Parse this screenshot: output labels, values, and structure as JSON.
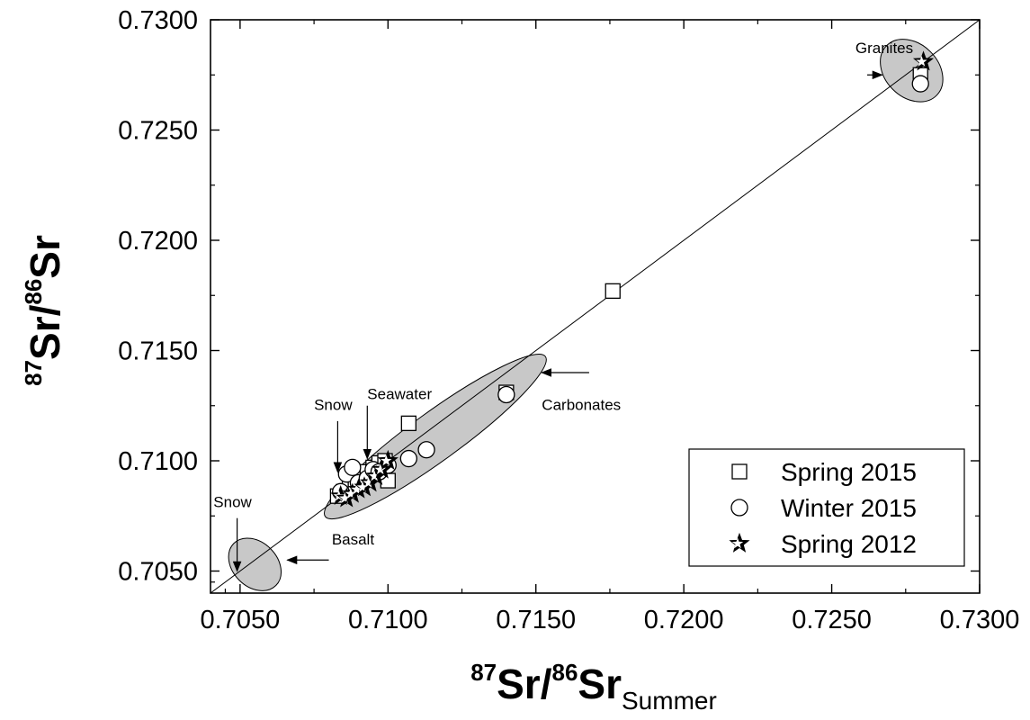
{
  "chart_data": {
    "type": "scatter",
    "xlabel": {
      "sup1": "87",
      "base1": "Sr/",
      "sup2": "86",
      "base2": "Sr",
      "sub": "Summer"
    },
    "ylabel": {
      "sup1": "87",
      "base1": "Sr/",
      "sup2": "86",
      "base2": "Sr"
    },
    "xlim": [
      0.704,
      0.73
    ],
    "ylim": [
      0.704,
      0.73
    ],
    "xticks": [
      "0.7050",
      "0.7100",
      "0.7150",
      "0.7200",
      "0.7250",
      "0.7300"
    ],
    "yticks": [
      "0.7050",
      "0.7100",
      "0.7150",
      "0.7200",
      "0.7250",
      "0.7300"
    ],
    "reference_line": {
      "type": "1:1",
      "from": [
        0.704,
        0.704
      ],
      "to": [
        0.73,
        0.73
      ]
    },
    "legend_position": "bottom-right",
    "series": [
      {
        "name": "Spring 2015",
        "marker": "square",
        "points": [
          [
            0.7083,
            0.7084
          ],
          [
            0.7085,
            0.7086
          ],
          [
            0.7087,
            0.7088
          ],
          [
            0.7089,
            0.709
          ],
          [
            0.7091,
            0.7093
          ],
          [
            0.7093,
            0.7095
          ],
          [
            0.7095,
            0.7097
          ],
          [
            0.7097,
            0.7099
          ],
          [
            0.7099,
            0.71
          ],
          [
            0.71,
            0.7091
          ],
          [
            0.7107,
            0.7117
          ],
          [
            0.714,
            0.7131
          ],
          [
            0.7176,
            0.7177
          ],
          [
            0.728,
            0.7275
          ]
        ]
      },
      {
        "name": "Winter 2015",
        "marker": "circle",
        "points": [
          [
            0.7084,
            0.7086
          ],
          [
            0.7086,
            0.7094
          ],
          [
            0.7088,
            0.7097
          ],
          [
            0.709,
            0.709
          ],
          [
            0.7093,
            0.7092
          ],
          [
            0.7095,
            0.7096
          ],
          [
            0.7097,
            0.7095
          ],
          [
            0.71,
            0.7098
          ],
          [
            0.7107,
            0.7101
          ],
          [
            0.7113,
            0.7105
          ],
          [
            0.714,
            0.713
          ],
          [
            0.728,
            0.7271
          ]
        ]
      },
      {
        "name": "Spring 2012",
        "marker": "star",
        "points": [
          [
            0.7084,
            0.7084
          ],
          [
            0.7086,
            0.7083
          ],
          [
            0.7088,
            0.7085
          ],
          [
            0.709,
            0.7087
          ],
          [
            0.7092,
            0.7088
          ],
          [
            0.7094,
            0.709
          ],
          [
            0.7096,
            0.7093
          ],
          [
            0.7098,
            0.7096
          ],
          [
            0.71,
            0.71
          ],
          [
            0.7281,
            0.7281
          ]
        ]
      }
    ],
    "regions": [
      {
        "label": "Basalt",
        "cx": 0.7055,
        "cy": 0.7053,
        "rx": 0.00075,
        "ry": 0.00135,
        "angle": 45
      },
      {
        "label": "Carbonates",
        "cx": 0.7116,
        "cy": 0.7111,
        "rx": 0.0046,
        "ry": 0.0011,
        "angle": 36
      },
      {
        "label": "Granites",
        "cx": 0.7277,
        "cy": 0.7277,
        "rx": 0.0009,
        "ry": 0.0016,
        "angle": 45
      }
    ],
    "annotations": [
      {
        "text": "Granites",
        "tx": 0.7258,
        "ty": 0.7285,
        "arrow_from": [
          0.7262,
          0.7275
        ],
        "arrow_to": [
          0.7267,
          0.7275
        ]
      },
      {
        "text": "Carbonates",
        "tx": 0.7152,
        "ty": 0.7123,
        "arrow_from": [
          0.7168,
          0.714
        ],
        "arrow_to": [
          0.7152,
          0.714
        ]
      },
      {
        "text": "Seawater",
        "tx": 0.7093,
        "ty": 0.7128,
        "arrow_from": [
          0.7093,
          0.7125
        ],
        "arrow_to": [
          0.7093,
          0.7101
        ]
      },
      {
        "text": "Snow",
        "tx": 0.7075,
        "ty": 0.7123,
        "arrow_from": [
          0.7083,
          0.7118
        ],
        "arrow_to": [
          0.7083,
          0.7095
        ]
      },
      {
        "text": "Snow",
        "tx": 0.7041,
        "ty": 0.7079,
        "arrow_from": [
          0.7049,
          0.7074
        ],
        "arrow_to": [
          0.7049,
          0.705
        ]
      },
      {
        "text": "Basalt",
        "tx": 0.7081,
        "ty": 0.7062,
        "arrow_from": [
          0.708,
          0.7055
        ],
        "arrow_to": [
          0.7066,
          0.7055
        ]
      }
    ]
  }
}
